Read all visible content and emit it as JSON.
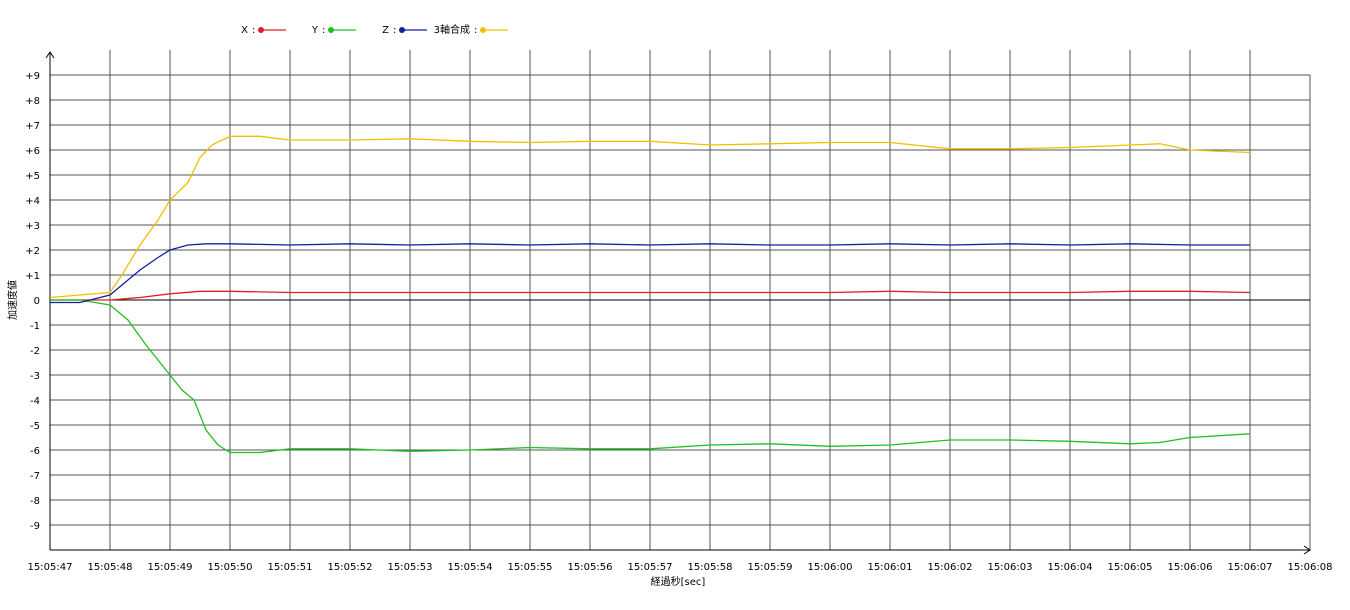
{
  "chart_data": {
    "type": "line",
    "xlabel": "経過秒[sec]",
    "ylabel": "加速度値",
    "x_ticks": [
      "15:05:47",
      "15:05:48",
      "15:05:49",
      "15:05:50",
      "15:05:51",
      "15:05:52",
      "15:05:53",
      "15:05:54",
      "15:05:55",
      "15:05:56",
      "15:05:57",
      "15:05:58",
      "15:05:59",
      "15:06:00",
      "15:06:01",
      "15:06:02",
      "15:06:03",
      "15:06:04",
      "15:06:05",
      "15:06:06",
      "15:06:07",
      "15:06:08"
    ],
    "y_ticks": [
      "+9",
      "+8",
      "+7",
      "+6",
      "+5",
      "+4",
      "+3",
      "+2",
      "+1",
      "0",
      "-1",
      "-2",
      "-3",
      "-4",
      "-5",
      "-6",
      "-7",
      "-8",
      "-9"
    ],
    "xlim": [
      0,
      21
    ],
    "ylim": [
      -10,
      10
    ],
    "grid": true,
    "legend_position": "top-left",
    "series": [
      {
        "name": "X",
        "color": "#e02020",
        "points": [
          [
            0,
            0
          ],
          [
            0.5,
            0
          ],
          [
            1,
            0
          ],
          [
            1.5,
            0.1
          ],
          [
            2,
            0.25
          ],
          [
            2.5,
            0.35
          ],
          [
            3,
            0.35
          ],
          [
            4,
            0.3
          ],
          [
            5,
            0.3
          ],
          [
            6,
            0.3
          ],
          [
            7,
            0.3
          ],
          [
            8,
            0.3
          ],
          [
            9,
            0.3
          ],
          [
            10,
            0.3
          ],
          [
            11,
            0.3
          ],
          [
            12,
            0.3
          ],
          [
            13,
            0.3
          ],
          [
            14,
            0.35
          ],
          [
            15,
            0.3
          ],
          [
            16,
            0.3
          ],
          [
            17,
            0.3
          ],
          [
            18,
            0.35
          ],
          [
            19,
            0.35
          ],
          [
            20,
            0.3
          ]
        ]
      },
      {
        "name": "Y",
        "color": "#20c020",
        "points": [
          [
            0,
            0
          ],
          [
            0.5,
            0
          ],
          [
            1,
            -0.2
          ],
          [
            1.3,
            -0.8
          ],
          [
            1.6,
            -1.8
          ],
          [
            2,
            -3
          ],
          [
            2.2,
            -3.6
          ],
          [
            2.4,
            -4
          ],
          [
            2.6,
            -5.2
          ],
          [
            2.8,
            -5.8
          ],
          [
            3,
            -6.1
          ],
          [
            3.5,
            -6.1
          ],
          [
            4,
            -5.95
          ],
          [
            5,
            -5.95
          ],
          [
            6,
            -6.05
          ],
          [
            7,
            -6
          ],
          [
            8,
            -5.9
          ],
          [
            9,
            -5.95
          ],
          [
            10,
            -5.95
          ],
          [
            11,
            -5.8
          ],
          [
            12,
            -5.75
          ],
          [
            13,
            -5.85
          ],
          [
            14,
            -5.8
          ],
          [
            15,
            -5.6
          ],
          [
            16,
            -5.6
          ],
          [
            17,
            -5.65
          ],
          [
            18,
            -5.75
          ],
          [
            18.5,
            -5.7
          ],
          [
            19,
            -5.5
          ],
          [
            20,
            -5.35
          ]
        ]
      },
      {
        "name": "Z",
        "color": "#1020a0",
        "points": [
          [
            0,
            -0.1
          ],
          [
            0.5,
            -0.1
          ],
          [
            1,
            0.2
          ],
          [
            1.2,
            0.6
          ],
          [
            1.5,
            1.2
          ],
          [
            1.8,
            1.7
          ],
          [
            2,
            2
          ],
          [
            2.3,
            2.2
          ],
          [
            2.6,
            2.25
          ],
          [
            3,
            2.25
          ],
          [
            4,
            2.2
          ],
          [
            5,
            2.25
          ],
          [
            6,
            2.2
          ],
          [
            7,
            2.25
          ],
          [
            8,
            2.2
          ],
          [
            9,
            2.25
          ],
          [
            10,
            2.2
          ],
          [
            11,
            2.25
          ],
          [
            12,
            2.2
          ],
          [
            13,
            2.2
          ],
          [
            14,
            2.25
          ],
          [
            15,
            2.2
          ],
          [
            16,
            2.25
          ],
          [
            17,
            2.2
          ],
          [
            18,
            2.25
          ],
          [
            19,
            2.2
          ],
          [
            20,
            2.2
          ]
        ]
      },
      {
        "name": "3軸合成",
        "color": "#f0c000",
        "points": [
          [
            0,
            0.1
          ],
          [
            0.5,
            0.2
          ],
          [
            1,
            0.3
          ],
          [
            1.2,
            1
          ],
          [
            1.5,
            2.2
          ],
          [
            1.8,
            3.2
          ],
          [
            2,
            4
          ],
          [
            2.3,
            4.7
          ],
          [
            2.5,
            5.7
          ],
          [
            2.7,
            6.2
          ],
          [
            3,
            6.55
          ],
          [
            3.5,
            6.55
          ],
          [
            4,
            6.4
          ],
          [
            5,
            6.4
          ],
          [
            6,
            6.45
          ],
          [
            7,
            6.35
          ],
          [
            8,
            6.3
          ],
          [
            9,
            6.35
          ],
          [
            10,
            6.35
          ],
          [
            11,
            6.2
          ],
          [
            12,
            6.25
          ],
          [
            13,
            6.3
          ],
          [
            14,
            6.3
          ],
          [
            15,
            6.05
          ],
          [
            16,
            6.05
          ],
          [
            17,
            6.1
          ],
          [
            18,
            6.2
          ],
          [
            18.5,
            6.25
          ],
          [
            19,
            6
          ],
          [
            20,
            5.9
          ]
        ]
      }
    ]
  }
}
